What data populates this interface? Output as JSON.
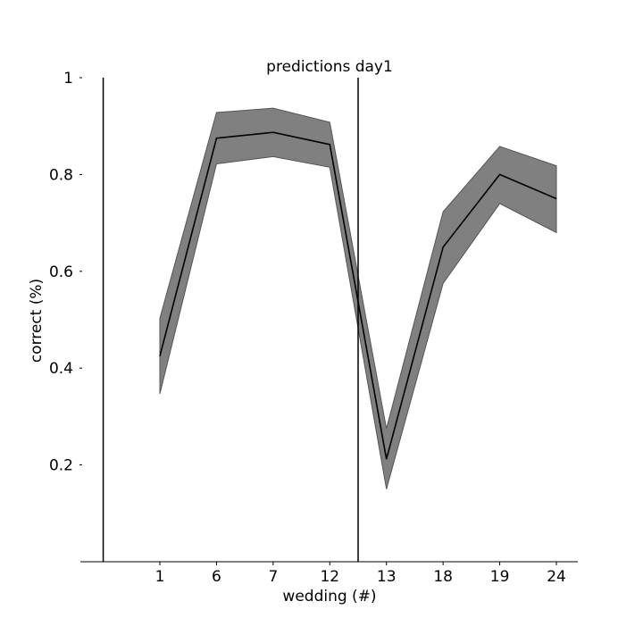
{
  "chart_data": {
    "type": "line",
    "title": "predictions day1",
    "xlabel": "wedding (#)",
    "ylabel": "correct (%)",
    "categories": [
      "1",
      "6",
      "7",
      "12",
      "13",
      "18",
      "19",
      "24"
    ],
    "series": [
      {
        "values": [
          0.425,
          0.875,
          0.887,
          0.862,
          0.212,
          0.65,
          0.8,
          0.75
        ],
        "upper": [
          0.503,
          0.928,
          0.937,
          0.908,
          0.275,
          0.723,
          0.858,
          0.818
        ],
        "lower": [
          0.347,
          0.822,
          0.837,
          0.815,
          0.15,
          0.575,
          0.74,
          0.68
        ]
      }
    ],
    "ylim": [
      0,
      1
    ],
    "yticks": [
      0.2,
      0.4,
      0.6,
      0.8,
      1
    ],
    "ytick_labels": [
      "0.2",
      "0.4",
      "0.6",
      "0.8",
      "1"
    ],
    "vlines_x": [
      -1,
      3.5
    ],
    "band_color": "#808080",
    "line_color": "#000000",
    "grid": false
  }
}
